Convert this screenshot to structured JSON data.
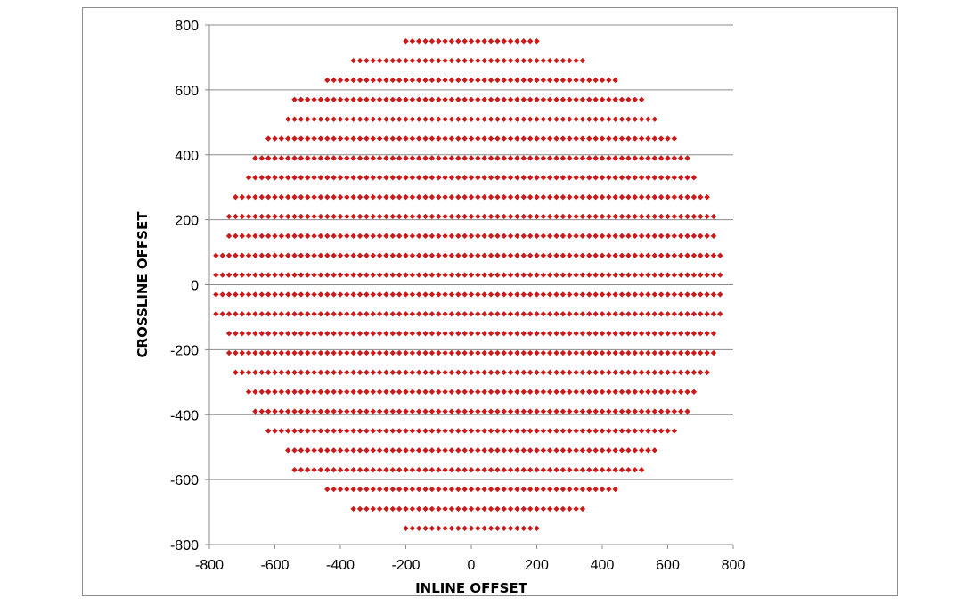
{
  "chart_data": {
    "type": "scatter",
    "title": "",
    "xlabel": "INLINE OFFSET",
    "ylabel": "CROSSLINE OFFSET",
    "xlim": [
      -800,
      800
    ],
    "ylim": [
      -800,
      800
    ],
    "xticks": [
      -800,
      -600,
      -400,
      -200,
      0,
      200,
      400,
      600,
      800
    ],
    "yticks": [
      -800,
      -600,
      -400,
      -200,
      0,
      200,
      400,
      600,
      800
    ],
    "grid": "horizontal",
    "legend": "none",
    "marker": "diamond",
    "marker_color": "#cc1a1a",
    "grid_color": "#8c8c8c",
    "point_spacing": {
      "x": 20,
      "y": 60
    },
    "series": [
      {
        "points_by_row": [
          {
            "y": 750,
            "x_min": -200,
            "x_max": 200
          },
          {
            "y": 690,
            "x_min": -360,
            "x_max": 340
          },
          {
            "y": 630,
            "x_min": -440,
            "x_max": 440
          },
          {
            "y": 570,
            "x_min": -540,
            "x_max": 520
          },
          {
            "y": 510,
            "x_min": -560,
            "x_max": 560
          },
          {
            "y": 450,
            "x_min": -620,
            "x_max": 620
          },
          {
            "y": 390,
            "x_min": -660,
            "x_max": 660
          },
          {
            "y": 330,
            "x_min": -680,
            "x_max": 680
          },
          {
            "y": 270,
            "x_min": -720,
            "x_max": 720
          },
          {
            "y": 210,
            "x_min": -740,
            "x_max": 740
          },
          {
            "y": 150,
            "x_min": -740,
            "x_max": 740
          },
          {
            "y": 90,
            "x_min": -780,
            "x_max": 760
          },
          {
            "y": 30,
            "x_min": -780,
            "x_max": 760
          },
          {
            "y": -30,
            "x_min": -780,
            "x_max": 760
          },
          {
            "y": -90,
            "x_min": -780,
            "x_max": 760
          },
          {
            "y": -150,
            "x_min": -740,
            "x_max": 740
          },
          {
            "y": -210,
            "x_min": -740,
            "x_max": 740
          },
          {
            "y": -270,
            "x_min": -720,
            "x_max": 720
          },
          {
            "y": -330,
            "x_min": -680,
            "x_max": 680
          },
          {
            "y": -390,
            "x_min": -660,
            "x_max": 660
          },
          {
            "y": -450,
            "x_min": -620,
            "x_max": 620
          },
          {
            "y": -510,
            "x_min": -560,
            "x_max": 560
          },
          {
            "y": -570,
            "x_min": -540,
            "x_max": 520
          },
          {
            "y": -630,
            "x_min": -440,
            "x_max": 440
          },
          {
            "y": -690,
            "x_min": -360,
            "x_max": 340
          },
          {
            "y": -750,
            "x_min": -200,
            "x_max": 200
          }
        ]
      }
    ]
  }
}
